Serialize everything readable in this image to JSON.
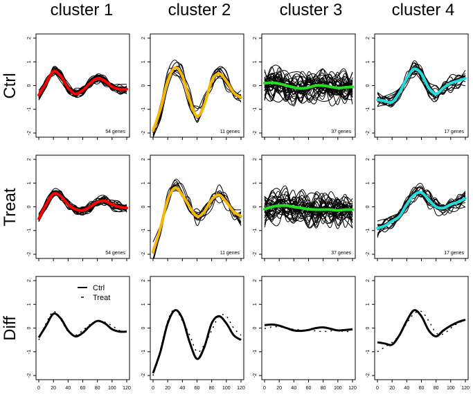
{
  "chart_data": {
    "type": "line",
    "column_titles": [
      "cluster  1",
      "cluster  2",
      "cluster  3",
      "cluster  4"
    ],
    "row_titles": [
      "Ctrl",
      "Treat",
      "Diff"
    ],
    "xlim": [
      0,
      120
    ],
    "ylim": [
      -2,
      2
    ],
    "x_ticks": [
      "0",
      "20",
      "40",
      "60",
      "80",
      "100",
      "120"
    ],
    "y_ticks": [
      "2",
      "1",
      "0",
      "-1",
      "-2"
    ],
    "x": [
      0,
      10,
      20,
      30,
      40,
      50,
      60,
      70,
      80,
      90,
      100,
      110,
      120
    ],
    "legend": {
      "entries": [
        "Ctrl",
        "Treat"
      ]
    },
    "clusters": [
      {
        "color": "#ff0000",
        "ctrl_count": "54 genes",
        "treat_count": "54 genes",
        "ctrl_mean": [
          -0.4,
          0.1,
          0.6,
          0.4,
          -0.1,
          -0.35,
          -0.2,
          0.1,
          0.3,
          0.2,
          -0.05,
          -0.15,
          -0.15
        ],
        "treat_mean": [
          -0.5,
          0.1,
          0.55,
          0.45,
          0.1,
          -0.1,
          -0.15,
          0.0,
          0.2,
          0.25,
          0.1,
          0.0,
          -0.05
        ],
        "diff_ctrl": [
          -0.4,
          0.1,
          0.6,
          0.4,
          -0.1,
          -0.35,
          -0.2,
          0.1,
          0.3,
          0.2,
          -0.05,
          -0.15,
          -0.15
        ],
        "diff_treat": [
          -0.5,
          0.2,
          0.7,
          0.35,
          -0.15,
          -0.3,
          -0.1,
          0.15,
          0.3,
          0.25,
          0.1,
          -0.1,
          -0.15
        ]
      },
      {
        "color": "#f5b800",
        "ctrl_count": "11 genes",
        "treat_count": "11 genes",
        "ctrl_mean": [
          -1.9,
          -1.0,
          0.2,
          0.75,
          0.4,
          -0.6,
          -1.3,
          -0.8,
          0.2,
          0.5,
          0.2,
          -0.3,
          -0.5
        ],
        "treat_mean": [
          -1.9,
          -0.9,
          0.3,
          0.8,
          0.5,
          0.0,
          -0.4,
          -0.2,
          0.3,
          0.5,
          0.2,
          -0.2,
          -0.4
        ],
        "diff_ctrl": [
          -1.9,
          -1.0,
          0.2,
          0.75,
          0.4,
          -0.6,
          -1.3,
          -0.8,
          0.2,
          0.5,
          0.2,
          -0.3,
          -0.5
        ],
        "diff_treat": [
          -2.0,
          -0.9,
          0.3,
          0.8,
          0.3,
          -0.3,
          -1.0,
          -0.7,
          -0.1,
          0.5,
          0.5,
          0.0,
          -0.3
        ]
      },
      {
        "color": "#22dd22",
        "ctrl_count": "37 genes",
        "treat_count": "37 genes",
        "ctrl_mean": [
          0.1,
          0.12,
          0.08,
          0.0,
          -0.08,
          -0.12,
          -0.08,
          0.0,
          0.0,
          -0.05,
          -0.1,
          -0.08,
          -0.05
        ],
        "treat_mean": [
          -0.1,
          0.0,
          0.05,
          0.05,
          0.0,
          -0.05,
          -0.1,
          -0.12,
          -0.12,
          -0.12,
          -0.15,
          -0.12,
          -0.12
        ],
        "diff_ctrl": [
          0.12,
          0.15,
          0.1,
          0.0,
          -0.1,
          -0.12,
          -0.08,
          0.0,
          0.03,
          -0.03,
          -0.1,
          -0.08,
          -0.05
        ],
        "diff_treat": [
          -0.02,
          0.05,
          0.05,
          0.0,
          -0.05,
          -0.08,
          -0.1,
          -0.12,
          -0.15,
          -0.12,
          -0.1,
          -0.15,
          -0.12
        ]
      },
      {
        "color": "#22dddd",
        "ctrl_count": "17 genes",
        "treat_count": "17 genes",
        "ctrl_mean": [
          -0.6,
          -0.65,
          -0.7,
          -0.3,
          0.3,
          0.7,
          0.5,
          -0.1,
          -0.35,
          -0.1,
          0.1,
          0.2,
          0.3
        ],
        "treat_mean": [
          -0.9,
          -0.8,
          -0.6,
          -0.4,
          0.1,
          0.5,
          0.6,
          0.3,
          0.0,
          -0.05,
          0.1,
          0.2,
          0.35
        ],
        "diff_ctrl": [
          -0.6,
          -0.65,
          -0.7,
          -0.3,
          0.3,
          0.75,
          0.5,
          -0.1,
          -0.35,
          -0.1,
          0.1,
          0.25,
          0.35
        ],
        "diff_treat": [
          -1.0,
          -0.8,
          -0.6,
          -0.3,
          0.2,
          0.6,
          0.7,
          0.3,
          -0.2,
          -0.25,
          0.0,
          0.2,
          0.35
        ]
      }
    ]
  }
}
